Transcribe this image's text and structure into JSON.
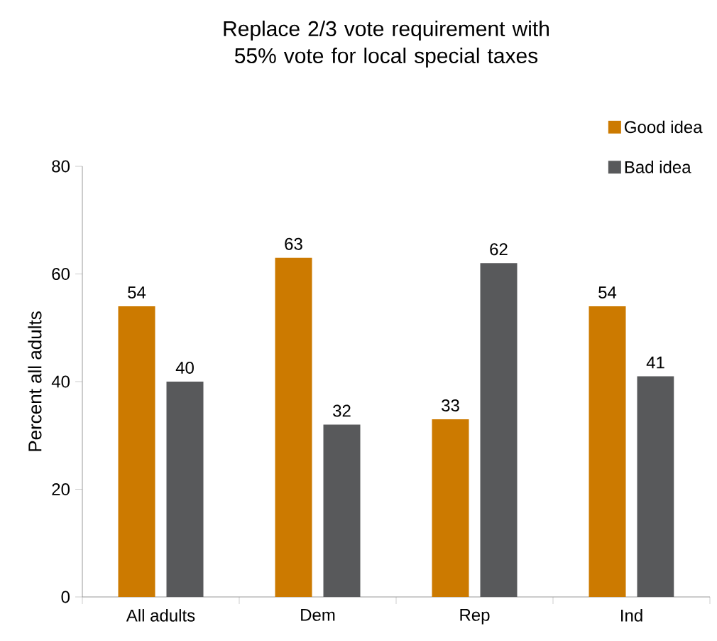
{
  "chart_data": {
    "type": "bar",
    "title": "Replace 2/3 vote requirement with 55% vote for local special taxes",
    "ylabel": "Percent all adults",
    "categories": [
      "All adults",
      "Dem",
      "Rep",
      "Ind"
    ],
    "series": [
      {
        "name": "Good idea",
        "color": "#cc7a00",
        "values": [
          54,
          63,
          33,
          54
        ]
      },
      {
        "name": "Bad idea",
        "color": "#58595b",
        "values": [
          40,
          32,
          62,
          41
        ]
      }
    ],
    "ylim": [
      0,
      80
    ],
    "yticks": [
      0,
      20,
      40,
      60,
      80
    ],
    "data_labels": true,
    "legend": "top right",
    "grid": false
  }
}
